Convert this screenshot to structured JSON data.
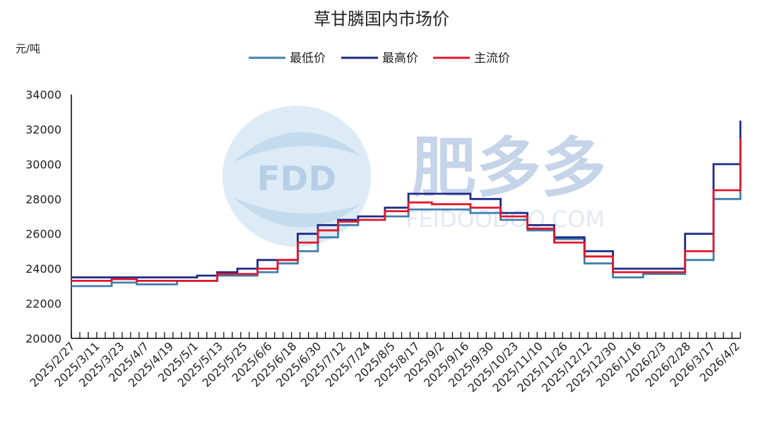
{
  "chart_data": {
    "type": "line",
    "title": "草甘膦国内市场价",
    "ylabel": "元/吨",
    "ylim": [
      20000,
      34000
    ],
    "yticks": [
      "34000",
      "32000",
      "30000",
      "28000",
      "26000",
      "24000",
      "22000",
      "20000"
    ],
    "x_tick_labels": [
      "2025/2/27",
      "2025/3/11",
      "2025/3/23",
      "2025/4/7",
      "2025/4/19",
      "2025/5/1",
      "2025/5/13",
      "2025/5/25",
      "2025/6/6",
      "2025/6/18",
      "2025/6/30",
      "2025/7/12",
      "2025/7/24",
      "2025/8/5",
      "2025/8/17",
      "2025/9/2",
      "2025/9/16",
      "2025/9/30",
      "2025/10/23",
      "2025/11/10",
      "2025/11/26",
      "2025/12/12",
      "2025/12/30",
      "2026/1/16",
      "2026/2/3",
      "2026/2/28",
      "2026/3/17",
      "2026/4/2"
    ],
    "legend_position": "top",
    "series": [
      {
        "name": "最低价",
        "color": "#3f7fae",
        "points": [
          [
            "2025/2/27",
            23000
          ],
          [
            "2025/3/23",
            23200
          ],
          [
            "2025/4/7",
            23100
          ],
          [
            "2025/5/1",
            23300
          ],
          [
            "2025/5/25",
            23600
          ],
          [
            "2025/6/18",
            23800
          ],
          [
            "2025/6/30",
            24300
          ],
          [
            "2025/7/12",
            25000
          ],
          [
            "2025/7/24",
            25800
          ],
          [
            "2025/8/5",
            26500
          ],
          [
            "2025/8/17",
            26800
          ],
          [
            "2025/9/2",
            27000
          ],
          [
            "2025/9/16",
            27400
          ],
          [
            "2025/9/30",
            27400
          ],
          [
            "2025/10/23",
            27200
          ],
          [
            "2025/11/10",
            26800
          ],
          [
            "2025/11/26",
            26200
          ],
          [
            "2025/12/12",
            25700
          ],
          [
            "2025/12/30",
            24300
          ],
          [
            "2026/1/16",
            23500
          ],
          [
            "2026/2/3",
            23700
          ],
          [
            "2026/2/28",
            24500
          ],
          [
            "2026/3/17",
            28000
          ],
          [
            "2026/4/2",
            31000
          ]
        ]
      },
      {
        "name": "最高价",
        "color": "#1f2a85",
        "points": [
          [
            "2025/2/27",
            23500
          ],
          [
            "2025/5/13",
            23600
          ],
          [
            "2025/5/25",
            23800
          ],
          [
            "2025/6/6",
            24000
          ],
          [
            "2025/6/18",
            24500
          ],
          [
            "2025/6/30",
            24500
          ],
          [
            "2025/7/12",
            26000
          ],
          [
            "2025/7/24",
            26500
          ],
          [
            "2025/8/5",
            26800
          ],
          [
            "2025/8/17",
            27000
          ],
          [
            "2025/9/2",
            27500
          ],
          [
            "2025/9/16",
            28300
          ],
          [
            "2025/9/30",
            28300
          ],
          [
            "2025/10/23",
            28000
          ],
          [
            "2025/11/10",
            27200
          ],
          [
            "2025/11/26",
            26500
          ],
          [
            "2025/12/12",
            25800
          ],
          [
            "2025/12/30",
            25000
          ],
          [
            "2026/1/16",
            24000
          ],
          [
            "2026/2/3",
            24000
          ],
          [
            "2026/2/28",
            26000
          ],
          [
            "2026/3/17",
            30000
          ],
          [
            "2026/4/2",
            32500
          ]
        ]
      },
      {
        "name": "主流价",
        "color": "#e3172c",
        "points": [
          [
            "2025/2/27",
            23300
          ],
          [
            "2025/3/23",
            23400
          ],
          [
            "2025/4/7",
            23300
          ],
          [
            "2025/5/1",
            23300
          ],
          [
            "2025/5/25",
            23700
          ],
          [
            "2025/6/18",
            24000
          ],
          [
            "2025/6/30",
            24500
          ],
          [
            "2025/7/12",
            25500
          ],
          [
            "2025/7/24",
            26200
          ],
          [
            "2025/8/5",
            26700
          ],
          [
            "2025/8/17",
            26800
          ],
          [
            "2025/9/2",
            27300
          ],
          [
            "2025/9/16",
            27800
          ],
          [
            "2025/9/30",
            27700
          ],
          [
            "2025/10/23",
            27500
          ],
          [
            "2025/11/10",
            27000
          ],
          [
            "2025/11/26",
            26300
          ],
          [
            "2025/12/12",
            25500
          ],
          [
            "2025/12/30",
            24700
          ],
          [
            "2026/1/16",
            23800
          ],
          [
            "2026/2/3",
            23800
          ],
          [
            "2026/2/28",
            25000
          ],
          [
            "2026/3/17",
            28500
          ],
          [
            "2026/4/2",
            31500
          ]
        ]
      }
    ]
  },
  "watermark": {
    "logo_letters": "FDD",
    "brand_text": "肥多多",
    "domain_text": "FEIDOODOO.COM"
  }
}
